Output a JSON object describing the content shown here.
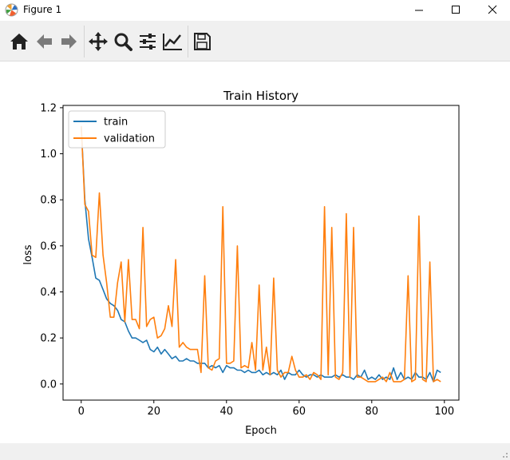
{
  "window": {
    "title": "Figure 1",
    "icon": "matplotlib-icon"
  },
  "toolbar": {
    "buttons": [
      {
        "name": "home-icon"
      },
      {
        "name": "back-arrow-icon"
      },
      {
        "name": "forward-arrow-icon"
      },
      {
        "name": "pan-icon"
      },
      {
        "name": "zoom-icon"
      },
      {
        "name": "configure-subplots-icon"
      },
      {
        "name": "edit-axis-icon"
      },
      {
        "name": "save-icon"
      }
    ]
  },
  "chart_data": {
    "type": "line",
    "title": "Train History",
    "xlabel": "Epoch",
    "ylabel": "loss",
    "xlim": [
      -5,
      104
    ],
    "ylim": [
      -0.07,
      1.21
    ],
    "x_ticks": [
      0,
      20,
      40,
      60,
      80,
      100
    ],
    "y_ticks": [
      0.0,
      0.2,
      0.4,
      0.6,
      0.8,
      1.0,
      1.2
    ],
    "legend_position": "top-left",
    "grid": false,
    "series": [
      {
        "name": "train",
        "color": "#1f77b4",
        "x": [
          0,
          1,
          2,
          3,
          4,
          5,
          6,
          7,
          8,
          9,
          10,
          11,
          12,
          13,
          14,
          15,
          16,
          17,
          18,
          19,
          20,
          21,
          22,
          23,
          24,
          25,
          26,
          27,
          28,
          29,
          30,
          31,
          32,
          33,
          34,
          35,
          36,
          37,
          38,
          39,
          40,
          41,
          42,
          43,
          44,
          45,
          46,
          47,
          48,
          49,
          50,
          51,
          52,
          53,
          54,
          55,
          56,
          57,
          58,
          59,
          60,
          61,
          62,
          63,
          64,
          65,
          66,
          67,
          68,
          69,
          70,
          71,
          72,
          73,
          74,
          75,
          76,
          77,
          78,
          79,
          80,
          81,
          82,
          83,
          84,
          85,
          86,
          87,
          88,
          89,
          90,
          91,
          92,
          93,
          94,
          95,
          96,
          97,
          98,
          99
        ],
        "values": [
          1.12,
          0.8,
          0.63,
          0.55,
          0.46,
          0.45,
          0.41,
          0.37,
          0.35,
          0.34,
          0.32,
          0.28,
          0.27,
          0.23,
          0.2,
          0.2,
          0.19,
          0.18,
          0.19,
          0.15,
          0.14,
          0.16,
          0.13,
          0.15,
          0.13,
          0.11,
          0.12,
          0.1,
          0.1,
          0.11,
          0.1,
          0.1,
          0.09,
          0.09,
          0.09,
          0.07,
          0.08,
          0.07,
          0.08,
          0.05,
          0.08,
          0.07,
          0.07,
          0.06,
          0.06,
          0.05,
          0.06,
          0.05,
          0.05,
          0.06,
          0.04,
          0.05,
          0.04,
          0.05,
          0.04,
          0.06,
          0.02,
          0.05,
          0.04,
          0.04,
          0.06,
          0.04,
          0.03,
          0.04,
          0.04,
          0.03,
          0.04,
          0.03,
          0.03,
          0.03,
          0.04,
          0.03,
          0.04,
          0.03,
          0.03,
          0.02,
          0.04,
          0.03,
          0.06,
          0.02,
          0.03,
          0.02,
          0.04,
          0.02,
          0.03,
          0.02,
          0.07,
          0.02,
          0.05,
          0.02,
          0.03,
          0.02,
          0.05,
          0.03,
          0.03,
          0.02,
          0.05,
          0.01,
          0.06,
          0.05
        ]
      },
      {
        "name": "validation",
        "color": "#ff7f0e",
        "x": [
          0,
          1,
          2,
          3,
          4,
          5,
          6,
          7,
          8,
          9,
          10,
          11,
          12,
          13,
          14,
          15,
          16,
          17,
          18,
          19,
          20,
          21,
          22,
          23,
          24,
          25,
          26,
          27,
          28,
          29,
          30,
          31,
          32,
          33,
          34,
          35,
          36,
          37,
          38,
          39,
          40,
          41,
          42,
          43,
          44,
          45,
          46,
          47,
          48,
          49,
          50,
          51,
          52,
          53,
          54,
          55,
          56,
          57,
          58,
          59,
          60,
          61,
          62,
          63,
          64,
          65,
          66,
          67,
          68,
          69,
          70,
          71,
          72,
          73,
          74,
          75,
          76,
          77,
          78,
          79,
          80,
          81,
          82,
          83,
          84,
          85,
          86,
          87,
          88,
          89,
          90,
          91,
          92,
          93,
          94,
          95,
          96,
          97,
          98,
          99
        ],
        "values": [
          1.12,
          0.78,
          0.75,
          0.56,
          0.55,
          0.83,
          0.56,
          0.44,
          0.29,
          0.29,
          0.44,
          0.53,
          0.27,
          0.54,
          0.28,
          0.28,
          0.24,
          0.68,
          0.25,
          0.28,
          0.29,
          0.2,
          0.21,
          0.24,
          0.34,
          0.25,
          0.54,
          0.16,
          0.18,
          0.16,
          0.15,
          0.15,
          0.15,
          0.05,
          0.47,
          0.07,
          0.06,
          0.1,
          0.11,
          0.77,
          0.09,
          0.09,
          0.1,
          0.6,
          0.07,
          0.08,
          0.07,
          0.18,
          0.06,
          0.43,
          0.06,
          0.16,
          0.04,
          0.46,
          0.06,
          0.03,
          0.05,
          0.05,
          0.12,
          0.06,
          0.03,
          0.03,
          0.04,
          0.02,
          0.05,
          0.04,
          0.02,
          0.77,
          0.04,
          0.68,
          0.03,
          0.02,
          0.05,
          0.74,
          0.03,
          0.68,
          0.03,
          0.03,
          0.02,
          0.01,
          0.01,
          0.01,
          0.02,
          0.03,
          0.01,
          0.05,
          0.01,
          0.01,
          0.01,
          0.02,
          0.47,
          0.01,
          0.02,
          0.73,
          0.02,
          0.01,
          0.53,
          0.01,
          0.02,
          0.01
        ]
      }
    ]
  },
  "status": {
    "text": ""
  }
}
